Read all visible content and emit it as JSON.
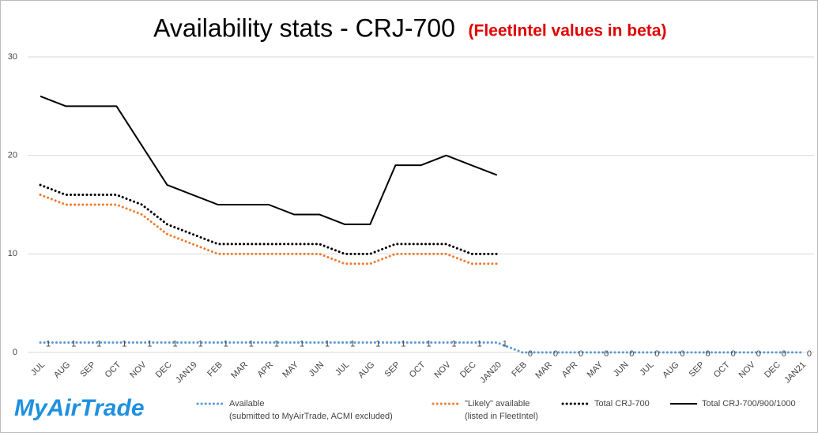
{
  "chart_data": {
    "type": "line",
    "title": "Availability stats - CRJ-700",
    "subtitle": "(FleetIntel values in beta)",
    "logo": "MyAirTrade",
    "categories": [
      "JUL",
      "AUG",
      "SEP",
      "OCT",
      "NOV",
      "DEC",
      "JAN19",
      "FEB",
      "MAR",
      "APR",
      "MAY",
      "JUN",
      "JUL",
      "AUG",
      "SEP",
      "OCT",
      "NOV",
      "DEC",
      "JAN20",
      "FEB",
      "MAR",
      "APR",
      "MAY",
      "JUN",
      "JUL",
      "AUG",
      "SEP",
      "OCT",
      "NOV",
      "DEC",
      "JAN21"
    ],
    "ylim": [
      0,
      30
    ],
    "yticks": [
      0,
      10,
      20,
      30
    ],
    "grid": true,
    "series": [
      {
        "name": "Available",
        "sublabel": "(submitted to MyAirTrade, ACMI excluded)",
        "color": "#5b9bd5",
        "style": "dotted",
        "data_labels": true,
        "values": [
          1,
          1,
          1,
          1,
          1,
          1,
          1,
          1,
          1,
          1,
          1,
          1,
          1,
          1,
          1,
          1,
          1,
          1,
          1,
          0,
          0,
          0,
          0,
          0,
          0,
          0,
          0,
          0,
          0,
          0,
          0
        ]
      },
      {
        "name": "\"Likely\" available",
        "sublabel": "(listed in FleetIntel)",
        "color": "#ed7d31",
        "style": "dotted",
        "data_labels": false,
        "values": [
          16,
          15,
          15,
          15,
          14,
          12,
          11,
          10,
          10,
          10,
          10,
          10,
          9,
          9,
          10,
          10,
          10,
          9,
          9,
          null,
          null,
          null,
          null,
          null,
          null,
          null,
          null,
          null,
          null,
          null,
          null
        ]
      },
      {
        "name": "Total CRJ-700",
        "color": "#000000",
        "style": "dotted",
        "data_labels": false,
        "values": [
          17,
          16,
          16,
          16,
          15,
          13,
          12,
          11,
          11,
          11,
          11,
          11,
          10,
          10,
          11,
          11,
          11,
          10,
          10,
          null,
          null,
          null,
          null,
          null,
          null,
          null,
          null,
          null,
          null,
          null,
          null
        ]
      },
      {
        "name": "Total CRJ-700/900/1000",
        "color": "#000000",
        "style": "solid",
        "data_labels": false,
        "values": [
          26,
          25,
          25,
          25,
          21,
          17,
          16,
          15,
          15,
          15,
          14,
          14,
          13,
          13,
          19,
          19,
          20,
          19,
          18,
          null,
          null,
          null,
          null,
          null,
          null,
          null,
          null,
          null,
          null,
          null,
          null
        ]
      }
    ]
  }
}
